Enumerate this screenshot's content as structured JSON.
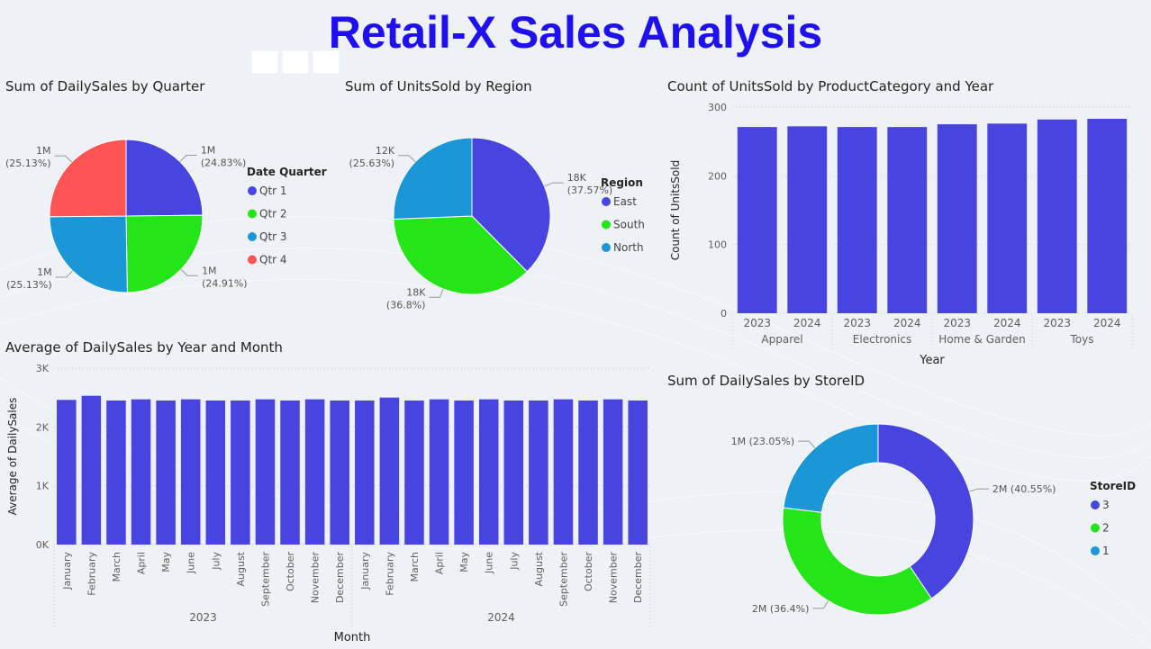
{
  "page_title": "Retail-X Sales Analysis",
  "colors": {
    "blue": "#4744e0",
    "green": "#23e517",
    "cyan": "#1b97d8",
    "red": "#fe5453",
    "title": "#1f10f2"
  },
  "chart_data": [
    {
      "type": "pie",
      "title": "Sum of DailySales by Quarter",
      "legend_title": "Date Quarter",
      "legend_position": "right",
      "slices": [
        {
          "label": "Qtr 1",
          "value_label": "1M",
          "percent_label": "(24.83%)",
          "percent": 24.83,
          "color": "#4744e0"
        },
        {
          "label": "Qtr 2",
          "value_label": "1M",
          "percent_label": "(24.91%)",
          "percent": 24.91,
          "color": "#23e517"
        },
        {
          "label": "Qtr 3",
          "value_label": "1M",
          "percent_label": "(25.13%)",
          "percent": 25.13,
          "color": "#1b97d8"
        },
        {
          "label": "Qtr 4",
          "value_label": "1M",
          "percent_label": "(25.13%)",
          "percent": 25.13,
          "color": "#fe5453"
        }
      ]
    },
    {
      "type": "pie",
      "title": "Sum of UnitsSold by Region",
      "legend_title": "Region",
      "legend_position": "right",
      "slices": [
        {
          "label": "East",
          "value_label": "18K",
          "percent_label": "(37.57%)",
          "percent": 37.57,
          "color": "#4744e0"
        },
        {
          "label": "South",
          "value_label": "18K",
          "percent_label": "(36.8%)",
          "percent": 36.8,
          "color": "#23e517"
        },
        {
          "label": "North",
          "value_label": "12K",
          "percent_label": "(25.63%)",
          "percent": 25.63,
          "color": "#1b97d8"
        }
      ]
    },
    {
      "type": "bar",
      "title": "Count of UnitsSold by ProductCategory and Year",
      "xlabel": "Year",
      "ylabel": "Count of UnitsSold",
      "ylim": [
        0,
        300
      ],
      "yticks": [
        0,
        100,
        200,
        300
      ],
      "ytick_labels": [
        "0",
        "100",
        "200",
        "300"
      ],
      "groups": [
        {
          "name": "Apparel",
          "categories": [
            "2023",
            "2024"
          ],
          "values": [
            271,
            272
          ]
        },
        {
          "name": "Electronics",
          "categories": [
            "2023",
            "2024"
          ],
          "values": [
            271,
            271
          ]
        },
        {
          "name": "Home & Garden",
          "categories": [
            "2023",
            "2024"
          ],
          "values": [
            275,
            276
          ]
        },
        {
          "name": "Toys",
          "categories": [
            "2023",
            "2024"
          ],
          "values": [
            282,
            283
          ]
        }
      ],
      "color": "#4744e0"
    },
    {
      "type": "bar",
      "title": "Average of DailySales by Year and Month",
      "xlabel": "Month",
      "ylabel": "Average of DailySales",
      "ylim": [
        0,
        3000
      ],
      "yticks": [
        0,
        1000,
        2000,
        3000
      ],
      "ytick_labels": [
        "0K",
        "1K",
        "2K",
        "3K"
      ],
      "groups": [
        {
          "name": "2023",
          "categories": [
            "January",
            "February",
            "March",
            "April",
            "May",
            "June",
            "July",
            "August",
            "September",
            "October",
            "November",
            "December"
          ],
          "values": [
            2460,
            2530,
            2450,
            2470,
            2450,
            2470,
            2450,
            2450,
            2470,
            2450,
            2470,
            2450
          ]
        },
        {
          "name": "2024",
          "categories": [
            "January",
            "February",
            "March",
            "April",
            "May",
            "June",
            "July",
            "August",
            "September",
            "October",
            "November",
            "December"
          ],
          "values": [
            2450,
            2500,
            2450,
            2470,
            2450,
            2470,
            2450,
            2450,
            2470,
            2450,
            2470,
            2450
          ]
        }
      ],
      "color": "#4744e0"
    },
    {
      "type": "donut",
      "title": "Sum of DailySales by StoreID",
      "legend_title": "StoreID",
      "legend_position": "right",
      "slices": [
        {
          "label": "3",
          "value_label": "2M",
          "percent_label": "(40.55%)",
          "percent": 40.55,
          "color": "#4744e0"
        },
        {
          "label": "2",
          "value_label": "2M",
          "percent_label": "(36.4%)",
          "percent": 36.4,
          "color": "#23e517"
        },
        {
          "label": "1",
          "value_label": "1M",
          "percent_label": "(23.05%)",
          "percent": 23.05,
          "color": "#1b97d8"
        }
      ]
    }
  ]
}
